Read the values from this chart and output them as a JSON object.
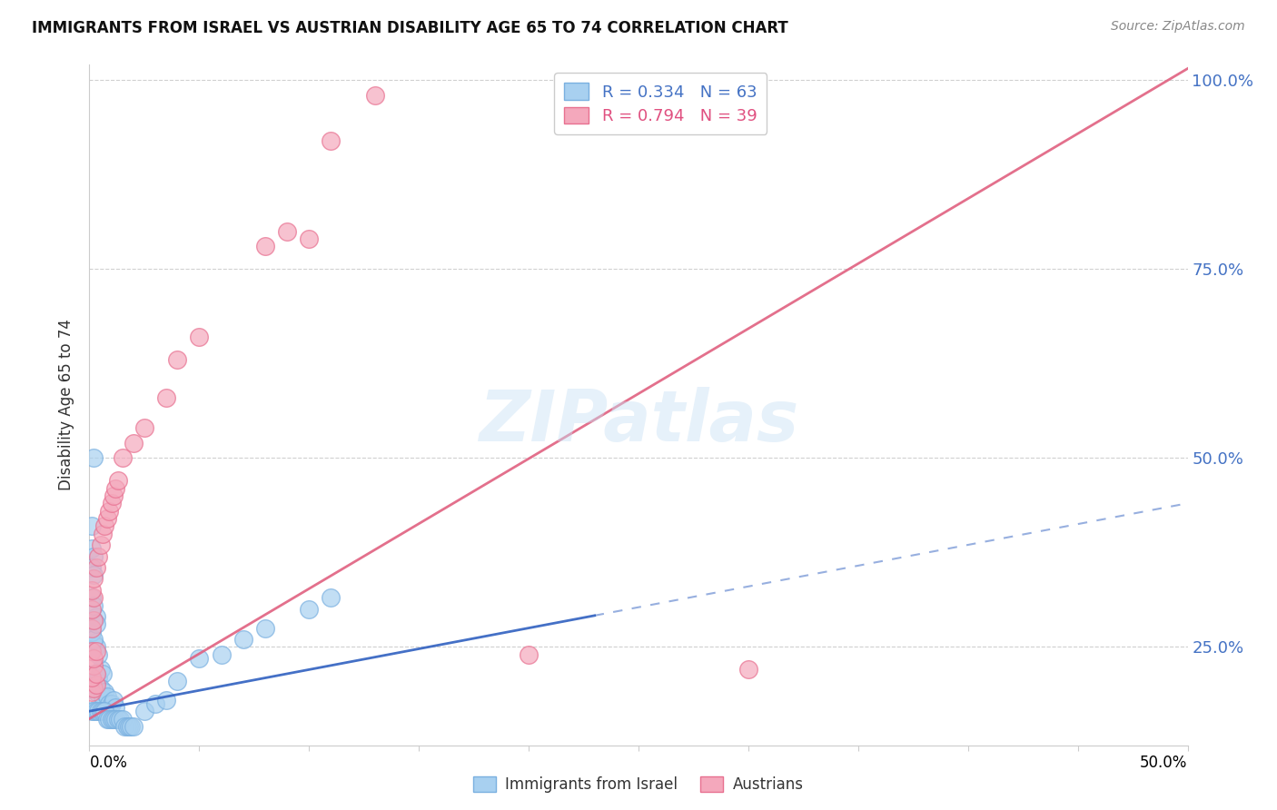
{
  "title": "IMMIGRANTS FROM ISRAEL VS AUSTRIAN DISABILITY AGE 65 TO 74 CORRELATION CHART",
  "source": "Source: ZipAtlas.com",
  "ylabel": "Disability Age 65 to 74",
  "xrange": [
    0,
    0.5
  ],
  "yrange": [
    0.12,
    1.02
  ],
  "legend_r1": "R = 0.334",
  "legend_n1": "N = 63",
  "legend_r2": "R = 0.794",
  "legend_n2": "N = 39",
  "color_israel": "#a8d0f0",
  "color_austria": "#f4a8bc",
  "color_israel_line": "#7ab0e0",
  "color_austria_line": "#e87090",
  "color_trendline_israel": "#3060c0",
  "color_trendline_austria": "#e06080",
  "israel_slope": 0.55,
  "israel_intercept": 0.165,
  "israel_line_xend": 0.23,
  "austria_slope": 1.72,
  "austria_intercept": 0.155,
  "israel_points": [
    [
      0.001,
      0.195
    ],
    [
      0.002,
      0.2
    ],
    [
      0.003,
      0.19
    ],
    [
      0.002,
      0.215
    ],
    [
      0.003,
      0.205
    ],
    [
      0.004,
      0.21
    ],
    [
      0.005,
      0.22
    ],
    [
      0.006,
      0.215
    ],
    [
      0.005,
      0.195
    ],
    [
      0.006,
      0.185
    ],
    [
      0.007,
      0.19
    ],
    [
      0.008,
      0.185
    ],
    [
      0.009,
      0.175
    ],
    [
      0.01,
      0.175
    ],
    [
      0.011,
      0.18
    ],
    [
      0.012,
      0.17
    ],
    [
      0.001,
      0.245
    ],
    [
      0.002,
      0.255
    ],
    [
      0.003,
      0.25
    ],
    [
      0.004,
      0.24
    ],
    [
      0.001,
      0.27
    ],
    [
      0.002,
      0.26
    ],
    [
      0.003,
      0.29
    ],
    [
      0.002,
      0.285
    ],
    [
      0.003,
      0.28
    ],
    [
      0.001,
      0.315
    ],
    [
      0.002,
      0.305
    ],
    [
      0.001,
      0.38
    ],
    [
      0.002,
      0.37
    ],
    [
      0.001,
      0.355
    ],
    [
      0.002,
      0.345
    ],
    [
      0.001,
      0.41
    ],
    [
      0.002,
      0.5
    ],
    [
      0.001,
      0.165
    ],
    [
      0.002,
      0.165
    ],
    [
      0.003,
      0.165
    ],
    [
      0.004,
      0.165
    ],
    [
      0.005,
      0.165
    ],
    [
      0.006,
      0.165
    ],
    [
      0.007,
      0.165
    ],
    [
      0.008,
      0.155
    ],
    [
      0.009,
      0.155
    ],
    [
      0.01,
      0.155
    ],
    [
      0.011,
      0.155
    ],
    [
      0.012,
      0.155
    ],
    [
      0.013,
      0.155
    ],
    [
      0.014,
      0.155
    ],
    [
      0.015,
      0.155
    ],
    [
      0.016,
      0.145
    ],
    [
      0.017,
      0.145
    ],
    [
      0.018,
      0.145
    ],
    [
      0.019,
      0.145
    ],
    [
      0.02,
      0.145
    ],
    [
      0.025,
      0.165
    ],
    [
      0.03,
      0.175
    ],
    [
      0.035,
      0.18
    ],
    [
      0.04,
      0.205
    ],
    [
      0.05,
      0.235
    ],
    [
      0.06,
      0.24
    ],
    [
      0.07,
      0.26
    ],
    [
      0.08,
      0.275
    ],
    [
      0.1,
      0.3
    ],
    [
      0.11,
      0.315
    ]
  ],
  "austria_points": [
    [
      0.001,
      0.19
    ],
    [
      0.002,
      0.195
    ],
    [
      0.003,
      0.2
    ],
    [
      0.001,
      0.21
    ],
    [
      0.002,
      0.225
    ],
    [
      0.003,
      0.215
    ],
    [
      0.001,
      0.245
    ],
    [
      0.002,
      0.235
    ],
    [
      0.003,
      0.245
    ],
    [
      0.001,
      0.275
    ],
    [
      0.002,
      0.285
    ],
    [
      0.001,
      0.3
    ],
    [
      0.002,
      0.315
    ],
    [
      0.001,
      0.325
    ],
    [
      0.002,
      0.34
    ],
    [
      0.003,
      0.355
    ],
    [
      0.004,
      0.37
    ],
    [
      0.005,
      0.385
    ],
    [
      0.006,
      0.4
    ],
    [
      0.007,
      0.41
    ],
    [
      0.008,
      0.42
    ],
    [
      0.009,
      0.43
    ],
    [
      0.01,
      0.44
    ],
    [
      0.011,
      0.45
    ],
    [
      0.012,
      0.46
    ],
    [
      0.013,
      0.47
    ],
    [
      0.015,
      0.5
    ],
    [
      0.02,
      0.52
    ],
    [
      0.025,
      0.54
    ],
    [
      0.035,
      0.58
    ],
    [
      0.04,
      0.63
    ],
    [
      0.05,
      0.66
    ],
    [
      0.08,
      0.78
    ],
    [
      0.09,
      0.8
    ],
    [
      0.1,
      0.79
    ],
    [
      0.11,
      0.92
    ],
    [
      0.13,
      0.98
    ],
    [
      0.2,
      0.24
    ],
    [
      0.3,
      0.22
    ]
  ],
  "watermark": "ZIPatlas"
}
